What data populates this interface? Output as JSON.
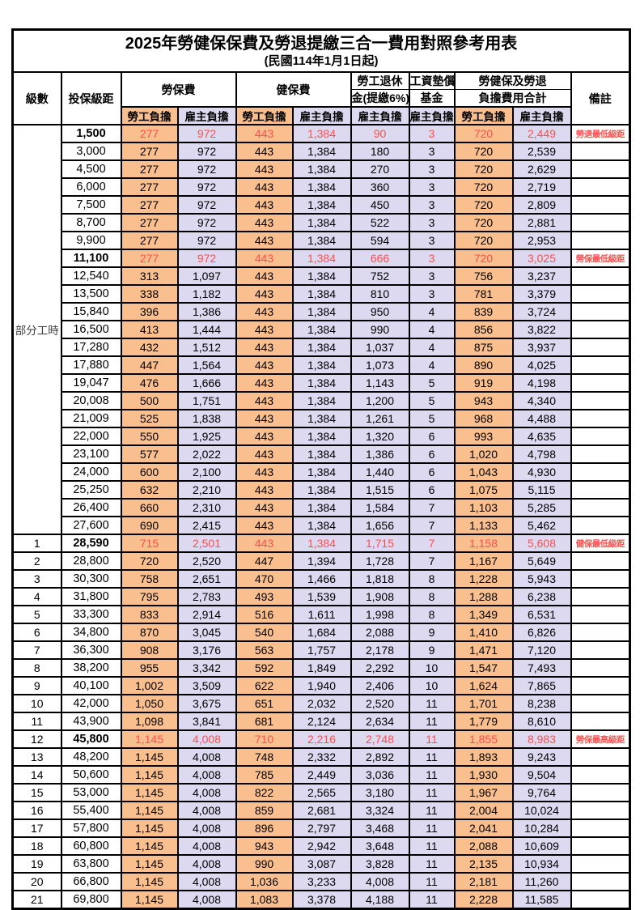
{
  "title": "2025年勞健保保費及勞退提繳三合一費用對照參考用表",
  "subtitle": "(民國114年1月1日起)",
  "colors": {
    "employee_bg": "#FABF8F",
    "employer_bg": "#DCD9F0",
    "highlight": "#FF4D4D"
  },
  "header": {
    "level": "級數",
    "bracket": "投保級距",
    "labor": "勞保費",
    "health": "健保費",
    "pension_line1": "勞工退休",
    "pension_line2": "金(提繳6%)",
    "fund_line1": "工資墊償",
    "fund_line2": "基金",
    "total_line1": "勞健保及勞退",
    "total_line2": "負擔費用合計",
    "remark": "備註",
    "employee_label": "勞工負擔",
    "employer_label": "雇主負擔"
  },
  "group_label": "部分工時",
  "group_rowspan": 23,
  "rows": [
    {
      "level": null,
      "bracket": "1,500",
      "v": [
        "277",
        "972",
        "443",
        "1,384",
        "90",
        "3",
        "720",
        "2,449"
      ],
      "remark": "勞退最低級距",
      "hl": true
    },
    {
      "level": null,
      "bracket": "3,000",
      "v": [
        "277",
        "972",
        "443",
        "1,384",
        "180",
        "3",
        "720",
        "2,539"
      ],
      "remark": "",
      "hl": false
    },
    {
      "level": null,
      "bracket": "4,500",
      "v": [
        "277",
        "972",
        "443",
        "1,384",
        "270",
        "3",
        "720",
        "2,629"
      ],
      "remark": "",
      "hl": false
    },
    {
      "level": null,
      "bracket": "6,000",
      "v": [
        "277",
        "972",
        "443",
        "1,384",
        "360",
        "3",
        "720",
        "2,719"
      ],
      "remark": "",
      "hl": false
    },
    {
      "level": null,
      "bracket": "7,500",
      "v": [
        "277",
        "972",
        "443",
        "1,384",
        "450",
        "3",
        "720",
        "2,809"
      ],
      "remark": "",
      "hl": false
    },
    {
      "level": null,
      "bracket": "8,700",
      "v": [
        "277",
        "972",
        "443",
        "1,384",
        "522",
        "3",
        "720",
        "2,881"
      ],
      "remark": "",
      "hl": false
    },
    {
      "level": null,
      "bracket": "9,900",
      "v": [
        "277",
        "972",
        "443",
        "1,384",
        "594",
        "3",
        "720",
        "2,953"
      ],
      "remark": "",
      "hl": false
    },
    {
      "level": null,
      "bracket": "11,100",
      "v": [
        "277",
        "972",
        "443",
        "1,384",
        "666",
        "3",
        "720",
        "3,025"
      ],
      "remark": "勞保最低級距",
      "hl": true
    },
    {
      "level": null,
      "bracket": "12,540",
      "v": [
        "313",
        "1,097",
        "443",
        "1,384",
        "752",
        "3",
        "756",
        "3,237"
      ],
      "remark": "",
      "hl": false
    },
    {
      "level": null,
      "bracket": "13,500",
      "v": [
        "338",
        "1,182",
        "443",
        "1,384",
        "810",
        "3",
        "781",
        "3,379"
      ],
      "remark": "",
      "hl": false
    },
    {
      "level": null,
      "bracket": "15,840",
      "v": [
        "396",
        "1,386",
        "443",
        "1,384",
        "950",
        "4",
        "839",
        "3,724"
      ],
      "remark": "",
      "hl": false
    },
    {
      "level": null,
      "bracket": "16,500",
      "v": [
        "413",
        "1,444",
        "443",
        "1,384",
        "990",
        "4",
        "856",
        "3,822"
      ],
      "remark": "",
      "hl": false
    },
    {
      "level": null,
      "bracket": "17,280",
      "v": [
        "432",
        "1,512",
        "443",
        "1,384",
        "1,037",
        "4",
        "875",
        "3,937"
      ],
      "remark": "",
      "hl": false
    },
    {
      "level": null,
      "bracket": "17,880",
      "v": [
        "447",
        "1,564",
        "443",
        "1,384",
        "1,073",
        "4",
        "890",
        "4,025"
      ],
      "remark": "",
      "hl": false
    },
    {
      "level": null,
      "bracket": "19,047",
      "v": [
        "476",
        "1,666",
        "443",
        "1,384",
        "1,143",
        "5",
        "919",
        "4,198"
      ],
      "remark": "",
      "hl": false
    },
    {
      "level": null,
      "bracket": "20,008",
      "v": [
        "500",
        "1,751",
        "443",
        "1,384",
        "1,200",
        "5",
        "943",
        "4,340"
      ],
      "remark": "",
      "hl": false
    },
    {
      "level": null,
      "bracket": "21,009",
      "v": [
        "525",
        "1,838",
        "443",
        "1,384",
        "1,261",
        "5",
        "968",
        "4,488"
      ],
      "remark": "",
      "hl": false
    },
    {
      "level": null,
      "bracket": "22,000",
      "v": [
        "550",
        "1,925",
        "443",
        "1,384",
        "1,320",
        "6",
        "993",
        "4,635"
      ],
      "remark": "",
      "hl": false
    },
    {
      "level": null,
      "bracket": "23,100",
      "v": [
        "577",
        "2,022",
        "443",
        "1,384",
        "1,386",
        "6",
        "1,020",
        "4,798"
      ],
      "remark": "",
      "hl": false
    },
    {
      "level": null,
      "bracket": "24,000",
      "v": [
        "600",
        "2,100",
        "443",
        "1,384",
        "1,440",
        "6",
        "1,043",
        "4,930"
      ],
      "remark": "",
      "hl": false
    },
    {
      "level": null,
      "bracket": "25,250",
      "v": [
        "632",
        "2,210",
        "443",
        "1,384",
        "1,515",
        "6",
        "1,075",
        "5,115"
      ],
      "remark": "",
      "hl": false
    },
    {
      "level": null,
      "bracket": "26,400",
      "v": [
        "660",
        "2,310",
        "443",
        "1,384",
        "1,584",
        "7",
        "1,103",
        "5,285"
      ],
      "remark": "",
      "hl": false
    },
    {
      "level": null,
      "bracket": "27,600",
      "v": [
        "690",
        "2,415",
        "443",
        "1,384",
        "1,656",
        "7",
        "1,133",
        "5,462"
      ],
      "remark": "",
      "hl": false
    },
    {
      "level": "1",
      "bracket": "28,590",
      "v": [
        "715",
        "2,501",
        "443",
        "1,384",
        "1,715",
        "7",
        "1,158",
        "5,608"
      ],
      "remark": "健保最低級距",
      "hl": true
    },
    {
      "level": "2",
      "bracket": "28,800",
      "v": [
        "720",
        "2,520",
        "447",
        "1,394",
        "1,728",
        "7",
        "1,167",
        "5,649"
      ],
      "remark": "",
      "hl": false
    },
    {
      "level": "3",
      "bracket": "30,300",
      "v": [
        "758",
        "2,651",
        "470",
        "1,466",
        "1,818",
        "8",
        "1,228",
        "5,943"
      ],
      "remark": "",
      "hl": false
    },
    {
      "level": "4",
      "bracket": "31,800",
      "v": [
        "795",
        "2,783",
        "493",
        "1,539",
        "1,908",
        "8",
        "1,288",
        "6,238"
      ],
      "remark": "",
      "hl": false
    },
    {
      "level": "5",
      "bracket": "33,300",
      "v": [
        "833",
        "2,914",
        "516",
        "1,611",
        "1,998",
        "8",
        "1,349",
        "6,531"
      ],
      "remark": "",
      "hl": false
    },
    {
      "level": "6",
      "bracket": "34,800",
      "v": [
        "870",
        "3,045",
        "540",
        "1,684",
        "2,088",
        "9",
        "1,410",
        "6,826"
      ],
      "remark": "",
      "hl": false
    },
    {
      "level": "7",
      "bracket": "36,300",
      "v": [
        "908",
        "3,176",
        "563",
        "1,757",
        "2,178",
        "9",
        "1,471",
        "7,120"
      ],
      "remark": "",
      "hl": false
    },
    {
      "level": "8",
      "bracket": "38,200",
      "v": [
        "955",
        "3,342",
        "592",
        "1,849",
        "2,292",
        "10",
        "1,547",
        "7,493"
      ],
      "remark": "",
      "hl": false
    },
    {
      "level": "9",
      "bracket": "40,100",
      "v": [
        "1,002",
        "3,509",
        "622",
        "1,940",
        "2,406",
        "10",
        "1,624",
        "7,865"
      ],
      "remark": "",
      "hl": false
    },
    {
      "level": "10",
      "bracket": "42,000",
      "v": [
        "1,050",
        "3,675",
        "651",
        "2,032",
        "2,520",
        "11",
        "1,701",
        "8,238"
      ],
      "remark": "",
      "hl": false
    },
    {
      "level": "11",
      "bracket": "43,900",
      "v": [
        "1,098",
        "3,841",
        "681",
        "2,124",
        "2,634",
        "11",
        "1,779",
        "8,610"
      ],
      "remark": "",
      "hl": false
    },
    {
      "level": "12",
      "bracket": "45,800",
      "v": [
        "1,145",
        "4,008",
        "710",
        "2,216",
        "2,748",
        "11",
        "1,855",
        "8,983"
      ],
      "remark": "勞保最高級距",
      "hl": true
    },
    {
      "level": "13",
      "bracket": "48,200",
      "v": [
        "1,145",
        "4,008",
        "748",
        "2,332",
        "2,892",
        "11",
        "1,893",
        "9,243"
      ],
      "remark": "",
      "hl": false
    },
    {
      "level": "14",
      "bracket": "50,600",
      "v": [
        "1,145",
        "4,008",
        "785",
        "2,449",
        "3,036",
        "11",
        "1,930",
        "9,504"
      ],
      "remark": "",
      "hl": false
    },
    {
      "level": "15",
      "bracket": "53,000",
      "v": [
        "1,145",
        "4,008",
        "822",
        "2,565",
        "3,180",
        "11",
        "1,967",
        "9,764"
      ],
      "remark": "",
      "hl": false
    },
    {
      "level": "16",
      "bracket": "55,400",
      "v": [
        "1,145",
        "4,008",
        "859",
        "2,681",
        "3,324",
        "11",
        "2,004",
        "10,024"
      ],
      "remark": "",
      "hl": false
    },
    {
      "level": "17",
      "bracket": "57,800",
      "v": [
        "1,145",
        "4,008",
        "896",
        "2,797",
        "3,468",
        "11",
        "2,041",
        "10,284"
      ],
      "remark": "",
      "hl": false
    },
    {
      "level": "18",
      "bracket": "60,800",
      "v": [
        "1,145",
        "4,008",
        "943",
        "2,942",
        "3,648",
        "11",
        "2,088",
        "10,609"
      ],
      "remark": "",
      "hl": false
    },
    {
      "level": "19",
      "bracket": "63,800",
      "v": [
        "1,145",
        "4,008",
        "990",
        "3,087",
        "3,828",
        "11",
        "2,135",
        "10,934"
      ],
      "remark": "",
      "hl": false
    },
    {
      "level": "20",
      "bracket": "66,800",
      "v": [
        "1,145",
        "4,008",
        "1,036",
        "3,233",
        "4,008",
        "11",
        "2,181",
        "11,260"
      ],
      "remark": "",
      "hl": false
    },
    {
      "level": "21",
      "bracket": "69,800",
      "v": [
        "1,145",
        "4,008",
        "1,083",
        "3,378",
        "4,188",
        "11",
        "2,228",
        "11,585"
      ],
      "remark": "",
      "hl": false
    }
  ]
}
